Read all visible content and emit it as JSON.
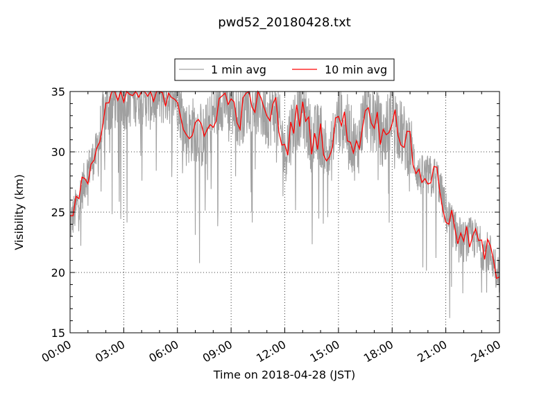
{
  "chart_data": {
    "type": "line",
    "title": "pwd52_20180428.txt",
    "xlabel": "Time on 2018-04-28 (JST)",
    "ylabel": "Visibility (km)",
    "xlim_hours": [
      0,
      24
    ],
    "ylim": [
      15,
      35
    ],
    "x_ticks": [
      "00:00",
      "03:00",
      "06:00",
      "09:00",
      "12:00",
      "15:00",
      "18:00",
      "21:00",
      "24:00"
    ],
    "y_ticks": [
      15,
      20,
      25,
      30,
      35
    ],
    "grid": true,
    "legend_position": "top-center",
    "series": [
      {
        "name": "1 min avg",
        "color": "#a0a0a0",
        "resolution": "1 min",
        "x_hours": [
          0,
          0.5,
          1,
          1.5,
          2,
          2.5,
          3,
          3.5,
          4,
          4.5,
          5,
          5.5,
          6,
          6.5,
          7,
          7.5,
          8,
          8.5,
          9,
          9.5,
          10,
          10.5,
          11,
          11.5,
          12,
          12.5,
          13,
          13.5,
          14,
          14.5,
          15,
          15.5,
          16,
          16.5,
          17,
          17.5,
          18,
          18.5,
          19,
          19.5,
          20,
          20.5,
          21,
          21.5,
          22,
          22.5,
          23,
          23.5,
          24
        ],
        "y": [
          24.0,
          26.0,
          28.5,
          30.0,
          33.5,
          34.5,
          34.5,
          34.8,
          35.0,
          34.5,
          34.8,
          35.0,
          34.8,
          31.5,
          32.0,
          31.0,
          33.0,
          34.5,
          34.0,
          33.0,
          34.5,
          34.0,
          33.0,
          33.5,
          30.0,
          32.5,
          33.5,
          31.0,
          31.5,
          29.5,
          33.0,
          32.0,
          30.0,
          33.5,
          33.0,
          31.0,
          33.5,
          31.5,
          30.5,
          28.0,
          28.0,
          28.0,
          25.0,
          23.5,
          22.5,
          23.0,
          22.0,
          21.5,
          20.0
        ]
      },
      {
        "name": "10 min avg",
        "color": "#ff0000",
        "resolution": "10 min",
        "x_hours": [
          0,
          0.5,
          1,
          1.5,
          2,
          2.5,
          3,
          3.5,
          4,
          4.5,
          5,
          5.5,
          6,
          6.5,
          7,
          7.5,
          8,
          8.5,
          9,
          9.5,
          10,
          10.5,
          11,
          11.5,
          12,
          12.5,
          13,
          13.5,
          14,
          14.5,
          15,
          15.5,
          16,
          16.5,
          17,
          17.5,
          18,
          18.5,
          19,
          19.5,
          20,
          20.5,
          21,
          21.5,
          22,
          22.5,
          23,
          23.5,
          24
        ],
        "y": [
          24.0,
          26.0,
          28.5,
          30.0,
          33.5,
          34.5,
          34.5,
          34.8,
          35.0,
          34.5,
          34.8,
          35.0,
          34.8,
          31.5,
          32.0,
          31.0,
          33.0,
          34.5,
          34.0,
          33.0,
          34.5,
          34.0,
          33.0,
          33.5,
          30.0,
          32.5,
          33.5,
          31.0,
          31.5,
          29.5,
          33.0,
          32.0,
          30.0,
          33.5,
          33.0,
          31.0,
          33.5,
          31.5,
          30.5,
          28.0,
          28.0,
          28.0,
          25.0,
          23.5,
          22.5,
          23.0,
          22.0,
          21.5,
          20.0
        ]
      }
    ]
  }
}
